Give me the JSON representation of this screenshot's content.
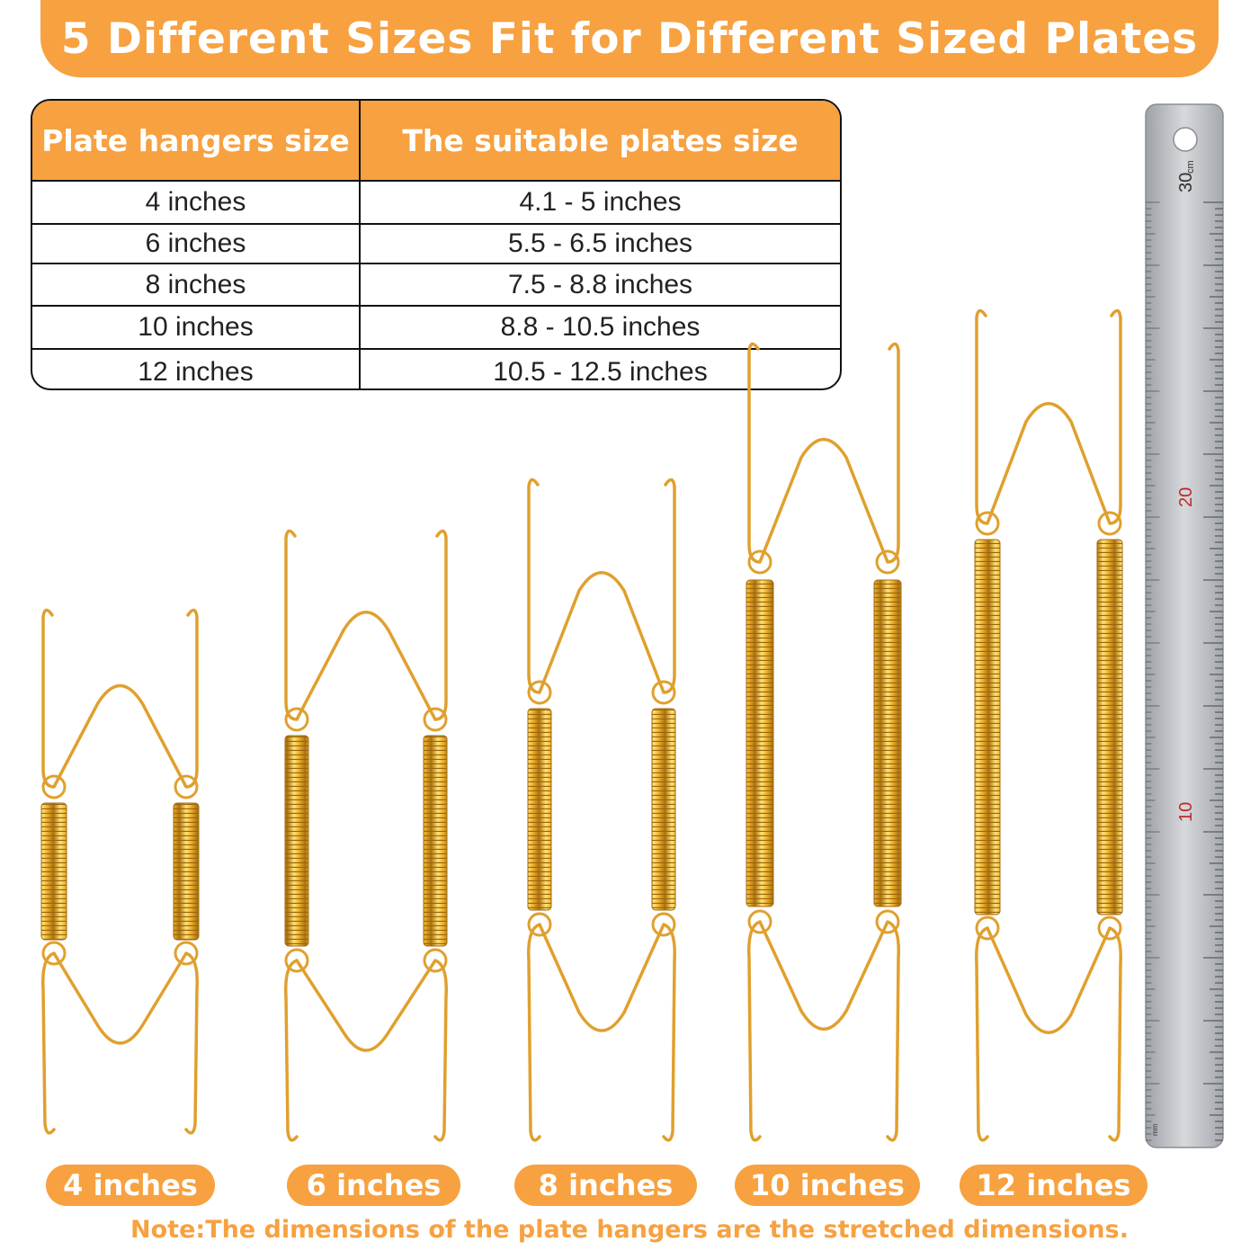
{
  "banner": {
    "title": "5 Different Sizes  Fit for Different Sized Plates"
  },
  "table": {
    "headers": [
      "Plate hangers size",
      "The suitable plates size"
    ],
    "rows": [
      [
        "4 inches",
        "4.1 - 5 inches"
      ],
      [
        "6 inches",
        "5.5 - 6.5 inches"
      ],
      [
        "8 inches",
        "7.5 - 8.8 inches"
      ],
      [
        "10 inches",
        "8.8 - 10.5 inches"
      ],
      [
        "12 inches",
        "10.5 - 12.5 inches"
      ]
    ]
  },
  "hangers": {
    "labels": [
      "4 inches",
      "6 inches",
      "8 inches",
      "10 inches",
      "12 inches"
    ]
  },
  "ruler": {
    "unit": "cm",
    "mm_unit": "mm",
    "major_labels": [
      "30",
      "20",
      "10"
    ]
  },
  "note": {
    "text": "Note:The dimensions of the plate hangers are the stretched dimensions."
  },
  "colors": {
    "accent": "#f7a140",
    "gold": "#e0a02e",
    "steel": "#b9bcc0"
  }
}
